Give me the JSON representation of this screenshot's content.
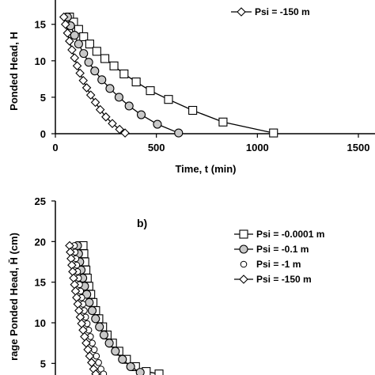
{
  "chart_data": [
    {
      "type": "line",
      "panel_label": "",
      "xlabel": "Time, t (min)",
      "ylabel": "Ponded Head, H",
      "xlim": [
        0,
        1500
      ],
      "ylim": [
        0,
        20
      ],
      "xticks": [
        "0",
        "500",
        "1000",
        "1500"
      ],
      "yticks": [
        "0",
        "5",
        "10",
        "15"
      ],
      "legend": {
        "placement": "top-right",
        "entries": [
          "Psi = -150 m"
        ]
      },
      "series": [
        {
          "name": "Psi = -0.0001 m",
          "marker": "square",
          "line": true,
          "x": [
            70,
            90,
            115,
            140,
            170,
            205,
            245,
            290,
            340,
            400,
            470,
            560,
            680,
            830,
            1080
          ],
          "y": [
            16,
            15.3,
            14.3,
            13.3,
            12.3,
            11.3,
            10.3,
            9.3,
            8.2,
            7.1,
            5.9,
            4.7,
            3.2,
            1.6,
            0.1
          ]
        },
        {
          "name": "Psi = -0.1 m",
          "marker": "circle",
          "line": true,
          "fill": "#c8c8c8",
          "x": [
            60,
            75,
            95,
            115,
            140,
            165,
            195,
            230,
            270,
            315,
            365,
            425,
            505,
            610
          ],
          "y": [
            16,
            14.8,
            13.5,
            12.3,
            11,
            9.8,
            8.6,
            7.4,
            6.2,
            5,
            3.8,
            2.6,
            1.3,
            0.1
          ]
        },
        {
          "name": "Psi = -150 m",
          "marker": "diamond",
          "line": true,
          "x": [
            42,
            50,
            60,
            70,
            82,
            95,
            108,
            122,
            138,
            155,
            175,
            198,
            222,
            250,
            282,
            318,
            345
          ],
          "y": [
            16,
            15,
            13.8,
            12.7,
            11.5,
            10.4,
            9.3,
            8.3,
            7.3,
            6.3,
            5.3,
            4.3,
            3.3,
            2.3,
            1.4,
            0.6,
            0.1
          ]
        }
      ]
    },
    {
      "type": "line",
      "panel_label": "b)",
      "xlabel": "",
      "ylabel": "rage Ponded Head, H̄ (cm)",
      "ylim": [
        0,
        25
      ],
      "yticks": [
        "5",
        "10",
        "15",
        "20",
        "25"
      ],
      "legend": {
        "placement": "top-right",
        "entries": [
          "Psi = -0.0001 m",
          "Psi = -0.1 m",
          "Psi = -1 m",
          "Psi = -150 m"
        ]
      },
      "series": [
        {
          "name": "Psi = -0.0001 m",
          "marker": "square",
          "line": true,
          "y": [
            19.5,
            18.5,
            17.5,
            16.5,
            15.5,
            14.5,
            13.5,
            12.5,
            11.5,
            10.5,
            9.5,
            8.5,
            7.5,
            6.5,
            5.5,
            4.6,
            4,
            3.7
          ]
        },
        {
          "name": "Psi = -0.1 m",
          "marker": "circle",
          "line": true,
          "fill": "#c8c8c8",
          "y": [
            19.5,
            18.5,
            17.5,
            16.5,
            15.5,
            14.5,
            13.5,
            12.5,
            11.5,
            10.5,
            9.5,
            8.5,
            7.5,
            6.5,
            5.5,
            4.6,
            3.9
          ]
        },
        {
          "name": "Psi = -1 m",
          "marker": "circle-small",
          "line": false,
          "y": [
            19.5,
            18.7,
            17.9,
            17.1,
            16.3,
            15.5,
            14.7,
            13.9,
            13.1,
            12.3,
            11.5,
            10.7,
            9.9,
            9.1,
            8.3,
            7.5,
            6.7,
            5.9,
            5.1,
            4.3,
            3.7
          ]
        },
        {
          "name": "Psi = -150 m",
          "marker": "diamond",
          "line": true,
          "y": [
            19.5,
            18.7,
            17.9,
            17.1,
            16.3,
            15.5,
            14.7,
            13.9,
            13.1,
            12.3,
            11.5,
            10.7,
            9.9,
            9.1,
            8.3,
            7.5,
            6.7,
            5.9,
            5.1,
            4.3,
            3.7
          ]
        }
      ]
    }
  ]
}
